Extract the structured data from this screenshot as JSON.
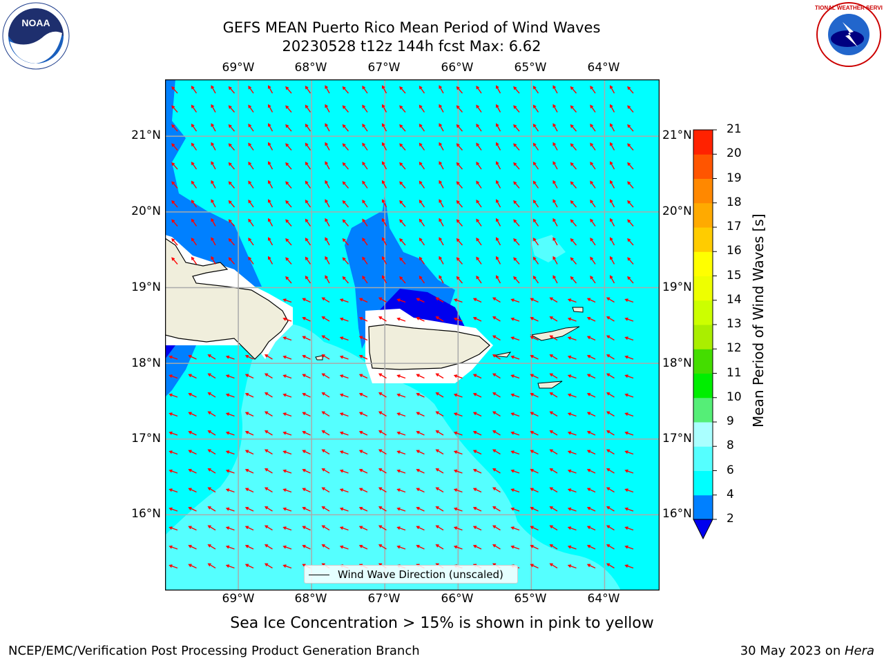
{
  "title": {
    "line1": "GEFS MEAN Puerto Rico Mean Period of Wind Waves",
    "line2": "20230528 t12z 144h fcst   Max: 6.62"
  },
  "axes": {
    "lon_labels": [
      "69°W",
      "68°W",
      "67°W",
      "66°W",
      "65°W",
      "64°W"
    ],
    "lat_labels": [
      "21°N",
      "20°N",
      "19°N",
      "18°N",
      "17°N",
      "16°N"
    ],
    "lon_values": [
      -69,
      -68,
      -67,
      -66,
      -65,
      -64
    ],
    "lat_values": [
      21,
      20,
      19,
      18,
      17,
      16
    ],
    "extent": {
      "lon": [
        -70.0,
        -63.25
      ],
      "lat": [
        15.0,
        21.75
      ]
    }
  },
  "colorbar": {
    "title": "Mean Period of Wind Waves [s]",
    "labels": [
      "21",
      "20",
      "19",
      "18",
      "17",
      "16",
      "15",
      "14",
      "13",
      "12",
      "11",
      "10",
      "9",
      "8",
      "6",
      "4",
      "2"
    ],
    "levels": [
      2,
      4,
      6,
      8,
      9,
      10,
      11,
      12,
      13,
      14,
      15,
      16,
      17,
      18,
      19,
      20,
      21
    ],
    "colors": [
      "#0000ee",
      "#0080ff",
      "#00ffff",
      "#55ffff",
      "#aaffff",
      "#55ee77",
      "#00ee00",
      "#44dd00",
      "#aaee00",
      "#ccff00",
      "#eeff00",
      "#ffff00",
      "#ffcc00",
      "#ffaa00",
      "#ff8800",
      "#ff5500",
      "#ff2200",
      "#ff0000"
    ]
  },
  "legend": {
    "label": "Wind Wave Direction (unscaled)"
  },
  "caption": "Sea Ice Concentration > 15% is shown in pink to yellow",
  "footer": {
    "left": "NCEP/EMC/Verification Post Processing Product Generation Branch",
    "right_date": "30 May 2023 on ",
    "right_machine": "Hera"
  },
  "map_colors": {
    "water": "#00ffff",
    "band_2_4": "#0080ff",
    "band_lt_2": "#0000ee",
    "band_6_8": "#55ffff",
    "band_8_9": "#aaffff",
    "land": "#f0eedc",
    "arrow": "#ff0000",
    "grid": "#aaaaaa"
  },
  "logos": {
    "left": "NOAA",
    "right": "NATIONAL WEATHER SERVICE"
  }
}
